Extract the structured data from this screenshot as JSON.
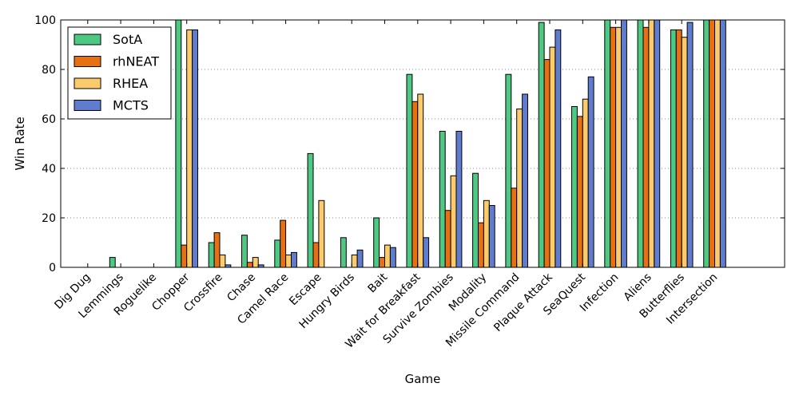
{
  "chart_data": {
    "type": "bar",
    "title": "",
    "xlabel": "Game",
    "ylabel": "Win Rate",
    "ylim": [
      0,
      100
    ],
    "yticks": [
      0,
      20,
      40,
      60,
      80,
      100
    ],
    "grid": "horizontal-dotted",
    "legend_position": "top-left",
    "categories": [
      "Dig Dug",
      "Lemmings",
      "Roguelike",
      "Chopper",
      "Crossfire",
      "Chase",
      "Camel Race",
      "Escape",
      "Hungry Birds",
      "Bait",
      "Wait for Breakfast",
      "Survive Zombies",
      "Modality",
      "Missile Command",
      "Plaque Attack",
      "SeaQuest",
      "Infection",
      "Aliens",
      "Butterflies",
      "Intersection"
    ],
    "series": [
      {
        "name": "SotA",
        "color": "#4dc983",
        "values": [
          0,
          4,
          0,
          100,
          10,
          13,
          11,
          46,
          12,
          20,
          78,
          55,
          38,
          78,
          99,
          65,
          100,
          100,
          96,
          100
        ]
      },
      {
        "name": "rhNEAT",
        "color": "#e86f12",
        "values": [
          0,
          0,
          0,
          9,
          14,
          2,
          19,
          10,
          0,
          4,
          67,
          23,
          18,
          32,
          84,
          61,
          97,
          97,
          96,
          100
        ]
      },
      {
        "name": "RHEA",
        "color": "#fccb6b",
        "values": [
          0,
          0,
          0,
          96,
          5,
          4,
          5,
          27,
          5,
          9,
          70,
          37,
          27,
          64,
          89,
          68,
          97,
          100,
          93,
          100
        ]
      },
      {
        "name": "MCTS",
        "color": "#5f7ccf",
        "values": [
          0,
          0,
          0,
          96,
          1,
          1,
          6,
          0,
          7,
          8,
          12,
          55,
          25,
          70,
          96,
          77,
          100,
          100,
          99,
          100
        ]
      }
    ]
  }
}
